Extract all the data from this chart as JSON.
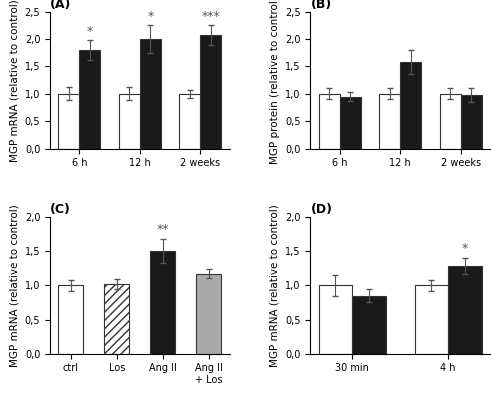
{
  "A": {
    "title": "(A)",
    "ylabel": "MGP mRNA (relative to control)",
    "categories": [
      "6 h",
      "12 h",
      "2 weeks"
    ],
    "white_vals": [
      1.0,
      1.0,
      1.0
    ],
    "black_vals": [
      1.8,
      2.0,
      2.08
    ],
    "white_errs": [
      0.12,
      0.12,
      0.07
    ],
    "black_errs": [
      0.18,
      0.25,
      0.18
    ],
    "significance": [
      "*",
      "*",
      "***"
    ],
    "ylim": [
      0.0,
      2.5
    ],
    "yticks": [
      0.0,
      0.5,
      1.0,
      1.5,
      2.0,
      2.5
    ]
  },
  "B": {
    "title": "(B)",
    "ylabel": "MGP protein (relative to control)",
    "categories": [
      "6 h",
      "12 h",
      "2 weeks"
    ],
    "white_vals": [
      1.0,
      1.0,
      1.0
    ],
    "black_vals": [
      0.95,
      1.58,
      0.98
    ],
    "white_errs": [
      0.1,
      0.1,
      0.1
    ],
    "black_errs": [
      0.08,
      0.22,
      0.12
    ],
    "significance": [
      null,
      null,
      null
    ],
    "ylim": [
      0.0,
      2.5
    ],
    "yticks": [
      0.0,
      0.5,
      1.0,
      1.5,
      2.0,
      2.5
    ]
  },
  "C": {
    "title": "(C)",
    "ylabel": "MGP mRNA (relative to control)",
    "categories": [
      "ctrl",
      "Los",
      "Ang II",
      "Ang II\n+ Los"
    ],
    "bar_vals": [
      1.0,
      1.02,
      1.5,
      1.17
    ],
    "bar_errs": [
      0.08,
      0.07,
      0.18,
      0.07
    ],
    "bar_styles": [
      "white",
      "hatched",
      "black",
      "gray"
    ],
    "significance": [
      null,
      null,
      "**",
      null
    ],
    "ylim": [
      0.0,
      2.0
    ],
    "yticks": [
      0.0,
      0.5,
      1.0,
      1.5,
      2.0
    ]
  },
  "D": {
    "title": "(D)",
    "ylabel": "MGP mRNA (relative to control)",
    "categories": [
      "30 min",
      "4 h"
    ],
    "white_vals": [
      1.0,
      1.0
    ],
    "black_vals": [
      0.85,
      1.28
    ],
    "white_errs": [
      0.15,
      0.08
    ],
    "black_errs": [
      0.1,
      0.12
    ],
    "significance": [
      null,
      "*"
    ],
    "ylim": [
      0.0,
      2.0
    ],
    "yticks": [
      0.0,
      0.5,
      1.0,
      1.5,
      2.0
    ]
  },
  "white_color": "#ffffff",
  "black_color": "#1a1a1a",
  "gray_color": "#aaaaaa",
  "edge_color": "#333333",
  "bar_width": 0.35,
  "sig_fontsize": 9,
  "label_fontsize": 7.5,
  "tick_fontsize": 7,
  "title_fontsize": 9
}
